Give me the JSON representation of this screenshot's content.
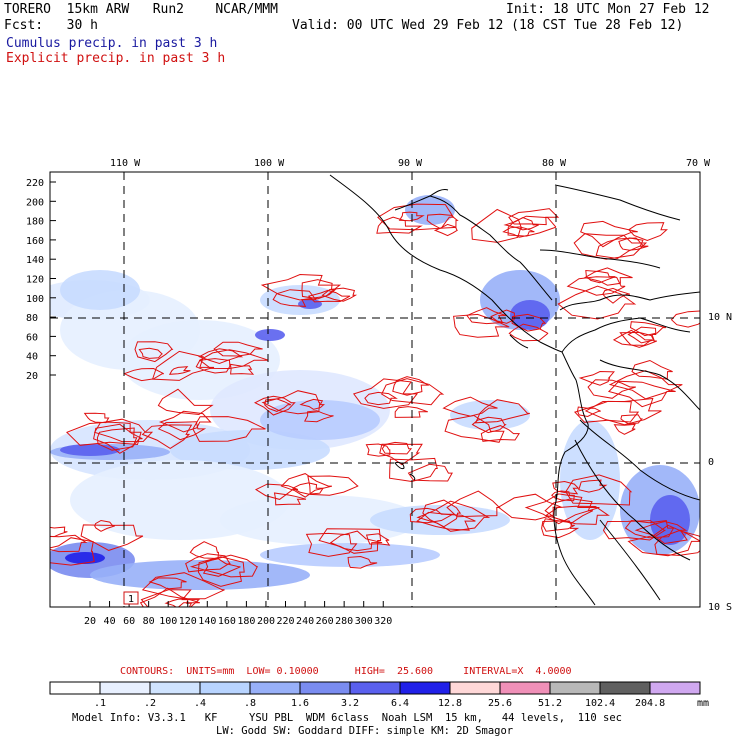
{
  "header": {
    "model": "TORERO  15km ARW   Run2    NCAR/MMM",
    "init": "Init: 18 UTC Mon 27 Feb 12",
    "fcst": "Fcst:   30 h",
    "valid": "Valid: 00 UTC Wed 29 Feb 12 (18 CST Tue 28 Feb 12)",
    "cumulus": "Cumulus precip. in past 3 h",
    "explicit": "Explicit precip. in past 3 h"
  },
  "axes": {
    "top_labels": [
      "110 W",
      "100 W",
      "90 W",
      "80 W",
      "70 W"
    ],
    "right_labels": [
      "10 N",
      "0",
      "10 S"
    ],
    "left_ticks": [
      "220",
      "200",
      "180",
      "160",
      "140",
      "120",
      "100",
      "80",
      "60",
      "40",
      "20"
    ],
    "bottom_ticks": [
      "20",
      "40",
      "60",
      "80",
      "100",
      "120",
      "140",
      "160",
      "180",
      "200",
      "220",
      "240",
      "260",
      "280",
      "300",
      "320"
    ]
  },
  "contours_info": "CONTOURS:  UNITS=mm  LOW= 0.10000      HIGH=  25.600     INTERVAL=X  4.0000",
  "colorbar": {
    "labels": [
      ".1",
      ".2",
      ".4",
      ".8",
      "1.6",
      "3.2",
      "6.4",
      "12.8",
      "25.6",
      "51.2",
      "102.4",
      "204.8"
    ],
    "colors": [
      "#ffffff",
      "#e8f0ff",
      "#d0e4ff",
      "#b8d4ff",
      "#98b0f8",
      "#7a8cf0",
      "#5a60ee",
      "#2020e8",
      "#ffd8d8",
      "#f090b8",
      "#b8b8b8",
      "#606060",
      "#d0a8f0"
    ],
    "unit": "mm"
  },
  "footer": {
    "line1": "Model Info: V3.3.1   KF     YSU PBL  WDM 6class  Noah LSM  15 km,   44 levels,  110 sec",
    "line2": "LW: Godd SW: Goddard DIFF: simple KM: 2D Smagor"
  },
  "box_label": "1"
}
